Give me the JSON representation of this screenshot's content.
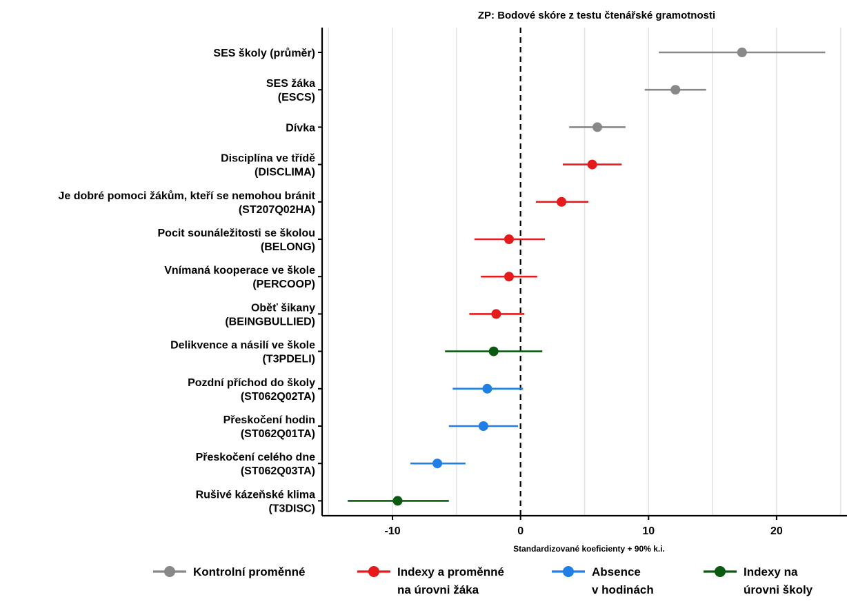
{
  "chart_data": {
    "type": "scatter",
    "subtype": "forest-plot",
    "title": "ZP: Bodové skóre z testu čtenářské gramotnosti",
    "xlabel": "Standardizované koeficienty + 90% k.i.",
    "ylabel": "",
    "xlim": [
      -15.5,
      25.5
    ],
    "xticks": [
      -10,
      0,
      10,
      20
    ],
    "xtick_labels": [
      "-10",
      "0",
      "10",
      "20"
    ],
    "grid": "vertical",
    "reference_line": 0,
    "legend_position": "bottom",
    "series": [
      {
        "name": "Kontrolní proměnné",
        "label_lines": [
          "Kontrolní proměnné"
        ],
        "color": "#888888"
      },
      {
        "name": "Indexy a proměnné na úrovni žáka",
        "label_lines": [
          "Indexy a proměnné",
          "na úrovni žáka"
        ],
        "color": "#e41a1c"
      },
      {
        "name": "Absence v hodinách",
        "label_lines": [
          "Absence",
          "v hodinách"
        ],
        "color": "#1f7fe6"
      },
      {
        "name": "Indexy na úrovni školy",
        "label_lines": [
          "Indexy na",
          "úrovni školy"
        ],
        "color": "#0b5a12"
      }
    ],
    "points": [
      {
        "label_lines": [
          "SES školy (průměr)"
        ],
        "series": 0,
        "estimate": 17.3,
        "lower": 10.8,
        "upper": 23.8
      },
      {
        "label_lines": [
          "SES žáka",
          "(ESCS)"
        ],
        "series": 0,
        "estimate": 12.1,
        "lower": 9.7,
        "upper": 14.5
      },
      {
        "label_lines": [
          "Dívka"
        ],
        "series": 0,
        "estimate": 6.0,
        "lower": 3.8,
        "upper": 8.2
      },
      {
        "label_lines": [
          "Disciplína ve třídě",
          "(DISCLIMA)"
        ],
        "series": 1,
        "estimate": 5.6,
        "lower": 3.3,
        "upper": 7.9
      },
      {
        "label_lines": [
          "Je dobré pomoci žákům, kteří se nemohou bránit",
          "(ST207Q02HA)"
        ],
        "series": 1,
        "estimate": 3.2,
        "lower": 1.2,
        "upper": 5.3
      },
      {
        "label_lines": [
          "Pocit sounáležitosti se školou",
          "(BELONG)"
        ],
        "series": 1,
        "estimate": -0.9,
        "lower": -3.6,
        "upper": 1.9
      },
      {
        "label_lines": [
          "Vnímaná kooperace ve škole",
          "(PERCOOP)"
        ],
        "series": 1,
        "estimate": -0.9,
        "lower": -3.1,
        "upper": 1.3
      },
      {
        "label_lines": [
          "Oběť šikany",
          "(BEINGBULLIED)"
        ],
        "series": 1,
        "estimate": -1.9,
        "lower": -4.0,
        "upper": 0.3
      },
      {
        "label_lines": [
          "Delikvence a násilí ve škole",
          "(T3PDELI)"
        ],
        "series": 3,
        "estimate": -2.1,
        "lower": -5.9,
        "upper": 1.7
      },
      {
        "label_lines": [
          "Pozdní příchod do školy",
          "(ST062Q02TA)"
        ],
        "series": 2,
        "estimate": -2.6,
        "lower": -5.3,
        "upper": 0.2
      },
      {
        "label_lines": [
          "Přeskočení hodin",
          "(ST062Q01TA)"
        ],
        "series": 2,
        "estimate": -2.9,
        "lower": -5.6,
        "upper": -0.2
      },
      {
        "label_lines": [
          "Přeskočení celého dne",
          "(ST062Q03TA)"
        ],
        "series": 2,
        "estimate": -6.5,
        "lower": -8.6,
        "upper": -4.3
      },
      {
        "label_lines": [
          "Rušivé kázeňské klima",
          "(T3DISC)"
        ],
        "series": 3,
        "estimate": -9.6,
        "lower": -13.5,
        "upper": -5.6
      }
    ]
  }
}
